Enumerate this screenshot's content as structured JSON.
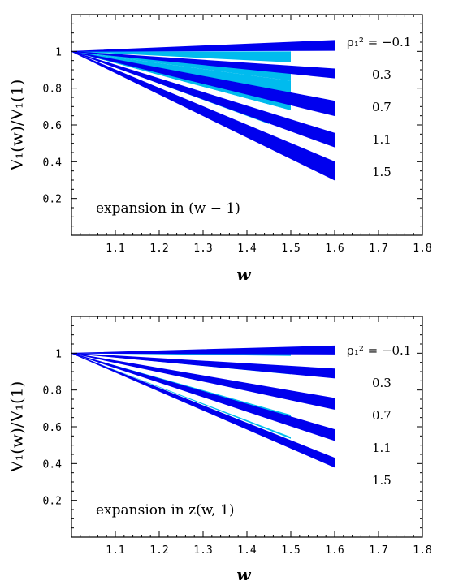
{
  "chart_data": [
    {
      "type": "area",
      "ylabel": "V₁(w)/V₁(1)",
      "xlabel": "w",
      "annotation": "expansion in (w − 1)",
      "xlim": [
        1.0,
        1.8
      ],
      "ylim": [
        0.0,
        1.2
      ],
      "xticks": [
        "1.1",
        "1.2",
        "1.3",
        "1.4",
        "1.5",
        "1.6",
        "1.7",
        "1.8"
      ],
      "xtick_values": [
        1.1,
        1.2,
        1.3,
        1.4,
        1.5,
        1.6,
        1.7,
        1.8
      ],
      "yticks": [
        "0.2",
        "0.4",
        "0.6",
        "0.8",
        "1"
      ],
      "ytick_values": [
        0.2,
        0.4,
        0.6,
        0.8,
        1.0
      ],
      "colors": {
        "band": "#0000ee",
        "light_band": "#00bbee"
      },
      "labels": [
        "ρ₁² = −0.1",
        "0.3",
        "0.7",
        "1.1",
        "1.5"
      ],
      "series": [
        {
          "name": "ρ₁² = −0.1",
          "x": [
            1.0,
            1.6
          ],
          "lower": [
            1.0,
            1.005
          ],
          "upper": [
            1.0,
            1.06
          ],
          "light_x": [
            1.0,
            1.5
          ],
          "light_lower": [
            1.0,
            0.94
          ],
          "light_upper": [
            1.0,
            1.0
          ]
        },
        {
          "name": "0.3",
          "x": [
            1.0,
            1.6
          ],
          "lower": [
            1.0,
            0.855
          ],
          "upper": [
            1.0,
            0.905
          ],
          "light_x": [
            1.0,
            1.5
          ],
          "light_lower": [
            1.0,
            0.84
          ],
          "light_upper": [
            1.0,
            0.9
          ]
        },
        {
          "name": "0.7",
          "x": [
            1.0,
            1.6
          ],
          "lower": [
            1.0,
            0.65
          ],
          "upper": [
            1.0,
            0.73
          ],
          "light_x": [
            1.0,
            1.5
          ],
          "light_lower": [
            1.0,
            0.68
          ],
          "light_upper": [
            1.0,
            0.84
          ]
        },
        {
          "name": "1.1",
          "x": [
            1.0,
            1.6
          ],
          "lower": [
            1.0,
            0.48
          ],
          "upper": [
            1.0,
            0.555
          ],
          "light_x": [
            1.0,
            1.5
          ],
          "light_lower": [
            1.0,
            0.68
          ],
          "light_upper": [
            1.0,
            0.76
          ]
        },
        {
          "name": "1.5",
          "x": [
            1.0,
            1.6
          ],
          "lower": [
            1.0,
            0.3
          ],
          "upper": [
            1.0,
            0.4
          ],
          "light_x": [
            1.0,
            1.45
          ],
          "light_lower": [
            1.0,
            0.605
          ],
          "light_upper": [
            1.0,
            0.62
          ]
        }
      ]
    },
    {
      "type": "area",
      "ylabel": "V₁(w)/V₁(1)",
      "xlabel": "w",
      "annotation": "expansion in z(w, 1)",
      "xlim": [
        1.0,
        1.8
      ],
      "ylim": [
        0.0,
        1.2
      ],
      "xticks": [
        "1.1",
        "1.2",
        "1.3",
        "1.4",
        "1.5",
        "1.6",
        "1.7",
        "1.8"
      ],
      "xtick_values": [
        1.1,
        1.2,
        1.3,
        1.4,
        1.5,
        1.6,
        1.7,
        1.8
      ],
      "yticks": [
        "0.2",
        "0.4",
        "0.6",
        "0.8",
        "1"
      ],
      "ytick_values": [
        0.2,
        0.4,
        0.6,
        0.8,
        1.0
      ],
      "colors": {
        "band": "#0000ee",
        "light_band": "#00bbee"
      },
      "labels": [
        "ρ₁² = −0.1",
        "0.3",
        "0.7",
        "1.1",
        "1.5"
      ],
      "series": [
        {
          "name": "ρ₁² = −0.1",
          "x": [
            1.0,
            1.6
          ],
          "lower": [
            1.0,
            0.995
          ],
          "upper": [
            1.0,
            1.04
          ],
          "light_x": [
            1.0,
            1.5
          ],
          "light_lower": [
            1.0,
            0.985
          ],
          "light_upper": [
            1.0,
            1.005
          ]
        },
        {
          "name": "0.3",
          "x": [
            1.0,
            1.6
          ],
          "lower": [
            1.0,
            0.865
          ],
          "upper": [
            1.0,
            0.915
          ],
          "light_x": [
            1.0,
            1.5
          ],
          "light_lower": [
            1.0,
            0.885
          ],
          "light_upper": [
            1.0,
            0.905
          ]
        },
        {
          "name": "0.7",
          "x": [
            1.0,
            1.6
          ],
          "lower": [
            1.0,
            0.695
          ],
          "upper": [
            1.0,
            0.755
          ],
          "light_x": [
            1.0,
            1.5
          ],
          "light_lower": [
            1.0,
            0.755
          ],
          "light_upper": [
            1.0,
            0.795
          ]
        },
        {
          "name": "1.1",
          "x": [
            1.0,
            1.6
          ],
          "lower": [
            1.0,
            0.525
          ],
          "upper": [
            1.0,
            0.585
          ],
          "light_x": [
            1.0,
            1.5
          ],
          "light_lower": [
            1.0,
            0.615
          ],
          "light_upper": [
            1.0,
            0.665
          ]
        },
        {
          "name": "1.5",
          "x": [
            1.0,
            1.6
          ],
          "lower": [
            1.0,
            0.38
          ],
          "upper": [
            1.0,
            0.43
          ],
          "light_x": [
            1.0,
            1.5
          ],
          "light_lower": [
            1.0,
            0.535
          ],
          "light_upper": [
            1.0,
            0.545
          ]
        }
      ]
    }
  ]
}
